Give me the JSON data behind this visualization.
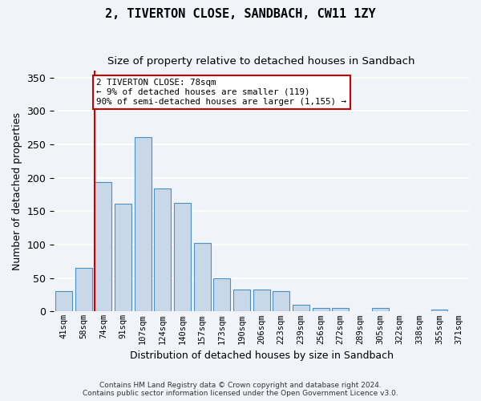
{
  "title": "2, TIVERTON CLOSE, SANDBACH, CW11 1ZY",
  "subtitle": "Size of property relative to detached houses in Sandbach",
  "xlabel": "Distribution of detached houses by size in Sandbach",
  "ylabel": "Number of detached properties",
  "bar_color": "#c8d8e8",
  "bar_edge_color": "#4a90c4",
  "categories": [
    "41sqm",
    "58sqm",
    "74sqm",
    "91sqm",
    "107sqm",
    "124sqm",
    "140sqm",
    "157sqm",
    "173sqm",
    "190sqm",
    "206sqm",
    "223sqm",
    "239sqm",
    "256sqm",
    "272sqm",
    "289sqm",
    "305sqm",
    "322sqm",
    "338sqm",
    "355sqm",
    "371sqm"
  ],
  "values": [
    30,
    65,
    194,
    161,
    261,
    184,
    163,
    103,
    50,
    33,
    33,
    30,
    10,
    5,
    5,
    0,
    5,
    0,
    0,
    3,
    0
  ],
  "ylim": [
    0,
    360
  ],
  "yticks": [
    0,
    50,
    100,
    150,
    200,
    250,
    300,
    350
  ],
  "annotation_line1": "2 TIVERTON CLOSE: 78sqm",
  "annotation_line2": "← 9% of detached houses are smaller (119)",
  "annotation_line3": "90% of semi-detached houses are larger (1,155) →",
  "footer1": "Contains HM Land Registry data © Crown copyright and database right 2024.",
  "footer2": "Contains public sector information licensed under the Open Government Licence v3.0.",
  "bg_color": "#f0f4f8",
  "grid_color": "#ffffff",
  "annotation_box_color": "#ffffff",
  "annotation_box_edge": "#cc0000",
  "vline_color": "#cc0000",
  "vline_x_index": 2
}
